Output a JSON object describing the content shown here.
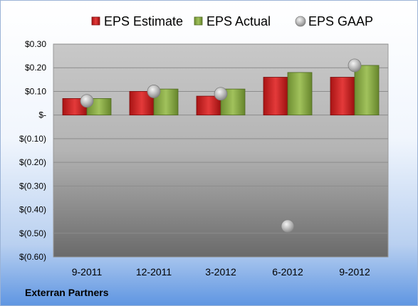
{
  "company": "Exterran Partners",
  "chart_data": {
    "type": "bar",
    "categories": [
      "9-2011",
      "12-2011",
      "3-2012",
      "6-2012",
      "9-2012"
    ],
    "series": [
      {
        "name": "EPS Estimate",
        "type": "bar",
        "color": "#d42a2a",
        "values": [
          0.07,
          0.1,
          0.08,
          0.16,
          0.16
        ]
      },
      {
        "name": "EPS Actual",
        "type": "bar",
        "color": "#8fb04a",
        "values": [
          0.07,
          0.11,
          0.11,
          0.18,
          0.21
        ]
      },
      {
        "name": "EPS GAAP",
        "type": "marker",
        "color": "#b8b8b8",
        "values": [
          0.06,
          0.1,
          0.09,
          -0.47,
          0.21
        ]
      }
    ],
    "yticks": [
      0.3,
      0.2,
      0.1,
      0,
      -0.1,
      -0.2,
      -0.3,
      -0.4,
      -0.5,
      -0.6
    ],
    "ytick_labels": [
      "$0.30",
      "$0.20",
      "$0.10",
      "$-",
      "$(0.10)",
      "$(0.20)",
      "$(0.30)",
      "$(0.40)",
      "$(0.50)",
      "$(0.60)"
    ],
    "ylim": [
      -0.6,
      0.3
    ],
    "grid": true,
    "legend": "top"
  }
}
